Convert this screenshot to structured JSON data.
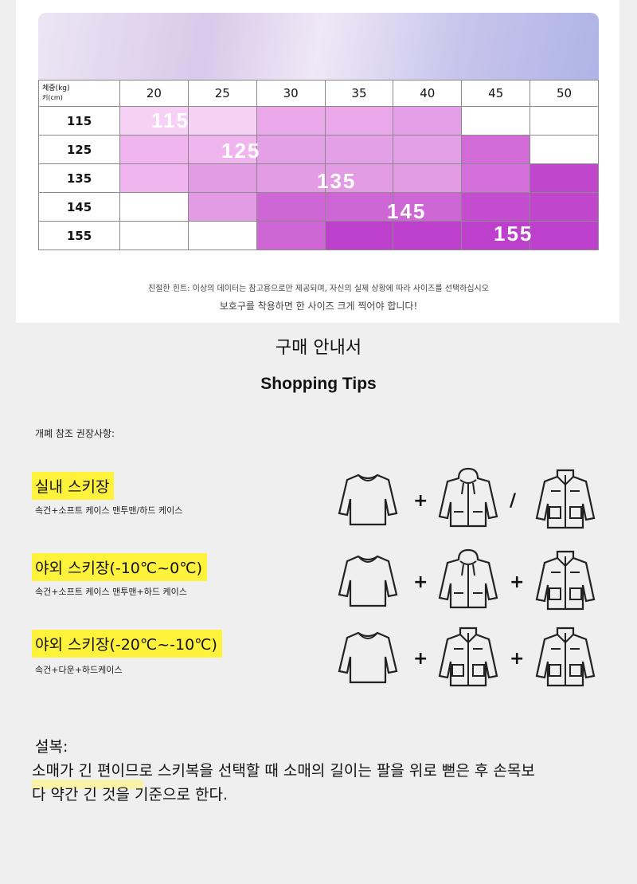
{
  "size_table": {
    "corner": [
      "체중(kg)",
      "키(cm)"
    ],
    "columns": [
      "20",
      "25",
      "30",
      "35",
      "40",
      "45",
      "50"
    ],
    "rows": [
      "115",
      "125",
      "135",
      "145",
      "155"
    ],
    "cell_colors": [
      [
        "#f7d0f5",
        "#f7d0f5",
        "#eaa8ea",
        "#eaa8ea",
        "#e49fe8",
        "#ffffff",
        "#ffffff"
      ],
      [
        "#f0b4ee",
        "#f0b4ee",
        "#e4a0e6",
        "#e4a0e6",
        "#e4a0e6",
        "#d26ad8",
        "#ffffff"
      ],
      [
        "#f0b4ee",
        "#e39ce4",
        "#e39ce4",
        "#e39ce4",
        "#e39ce4",
        "#d56fdb",
        "#c046cc"
      ],
      [
        "#ffffff",
        "#e39ce4",
        "#cf66d6",
        "#cf66d6",
        "#cf66d6",
        "#c34ccf",
        "#c046cc"
      ],
      [
        "#ffffff",
        "#ffffff",
        "#cf66d6",
        "#bd40cc",
        "#bd40cc",
        "#bd40cc",
        "#bd40cc"
      ]
    ],
    "overlay_labels": [
      "115",
      "125",
      "135",
      "145",
      "155"
    ]
  },
  "notes": [
    "친절한 힌트: 이상의 데이터는 참고용으로만 제공되며, 자신의 실제 상황에 따라 사이즈를 선택하십시오",
    "보호구를 착용하면 한 사이즈 크게 찍어야 합니다!"
  ],
  "guide": {
    "title": "구매 안내서",
    "subtitle": "Shopping Tips",
    "intro": "개폐 참조 권장사항:",
    "sections": [
      {
        "title": "실내 스키장",
        "description": "속건+소프트 케이스 맨투맨/하드 케이스",
        "separators": [
          "+",
          "/"
        ]
      },
      {
        "title": "야외 스키장(-10℃~0℃)",
        "description": "속건+소프트 케이스 맨투맨+하드 케이스",
        "separators": [
          "+",
          "+"
        ]
      },
      {
        "title": "야외 스키장(-20℃~-10℃)",
        "description": "속건+다운+하드케이스",
        "separators": [
          "+",
          "+"
        ]
      }
    ]
  },
  "footer": {
    "label": "설복:",
    "lines": [
      "소매가 긴 편이므로 스키복을 선택할 때 소매의 길이는 팔을 위로 뻗은 후 손목보",
      "다 약간 긴 것을 기준으로 한다."
    ]
  }
}
